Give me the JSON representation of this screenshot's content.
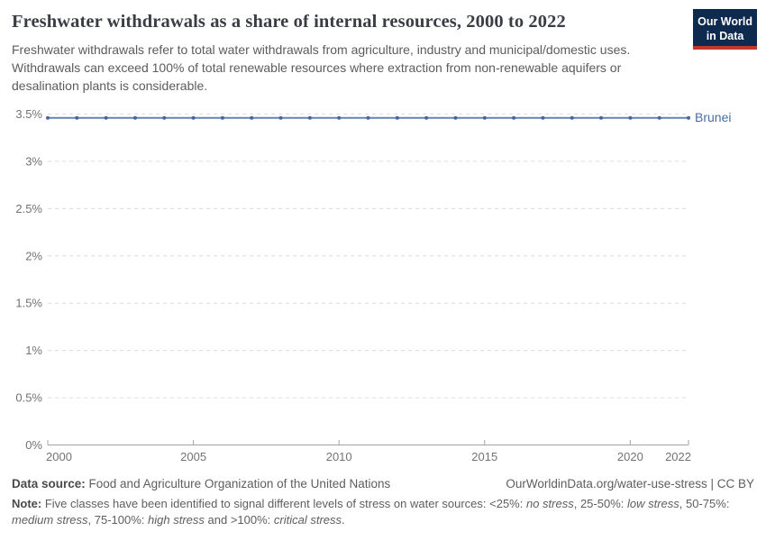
{
  "header": {
    "title": "Freshwater withdrawals as a share of internal resources, 2000 to 2022",
    "subtitle": "Freshwater withdrawals refer to total water withdrawals from agriculture, industry and municipal/domestic uses. Withdrawals can exceed 100% of total renewable resources where extraction from non-renewable aquifers or desalination plants is considerable.",
    "logo": {
      "line1": "Our World",
      "line2": "in Data"
    }
  },
  "chart_data": {
    "type": "line",
    "title": "Freshwater withdrawals as a share of internal resources, 2000 to 2022",
    "xlabel": "",
    "ylabel": "",
    "xlim": [
      2000,
      2022
    ],
    "ylim": [
      0,
      3.5
    ],
    "x_ticks": [
      2000,
      2005,
      2010,
      2015,
      2020,
      2022
    ],
    "y_ticks": [
      0,
      0.5,
      1,
      1.5,
      2,
      2.5,
      3,
      3.5
    ],
    "y_tick_suffix": "%",
    "grid": "horizontal-dashed",
    "legend_position": "end-of-line-label",
    "colors": {
      "grid": "#dcdcdc",
      "axis": "#a3a3a3",
      "tick_text": "#737373"
    },
    "series": [
      {
        "name": "Brunei",
        "color": "#6783b4",
        "point_color": "#49659c",
        "label_color": "#4a6da6",
        "x": [
          2000,
          2001,
          2002,
          2003,
          2004,
          2005,
          2006,
          2007,
          2008,
          2009,
          2010,
          2011,
          2012,
          2013,
          2014,
          2015,
          2016,
          2017,
          2018,
          2019,
          2020,
          2021,
          2022
        ],
        "values": [
          3.46,
          3.46,
          3.46,
          3.46,
          3.46,
          3.46,
          3.46,
          3.46,
          3.46,
          3.46,
          3.46,
          3.46,
          3.46,
          3.46,
          3.46,
          3.46,
          3.46,
          3.46,
          3.46,
          3.46,
          3.46,
          3.46,
          3.46
        ]
      }
    ]
  },
  "footer": {
    "source_label": "Data source:",
    "source_text": " Food and Agriculture Organization of the United Nations",
    "attribution": "OurWorldinData.org/water-use-stress | CC BY",
    "note_segments": [
      {
        "t": "Note:",
        "b": true
      },
      {
        "t": " Five classes have been identified to signal different levels of stress on water sources: <25%: "
      },
      {
        "t": "no stress",
        "i": true
      },
      {
        "t": ", 25-50%: "
      },
      {
        "t": "low stress",
        "i": true
      },
      {
        "t": ", 50-75%: "
      },
      {
        "t": "medium stress",
        "i": true
      },
      {
        "t": ", 75-100%: "
      },
      {
        "t": "high stress",
        "i": true
      },
      {
        "t": " and >100%: "
      },
      {
        "t": "critical stress",
        "i": true
      },
      {
        "t": "."
      }
    ]
  }
}
